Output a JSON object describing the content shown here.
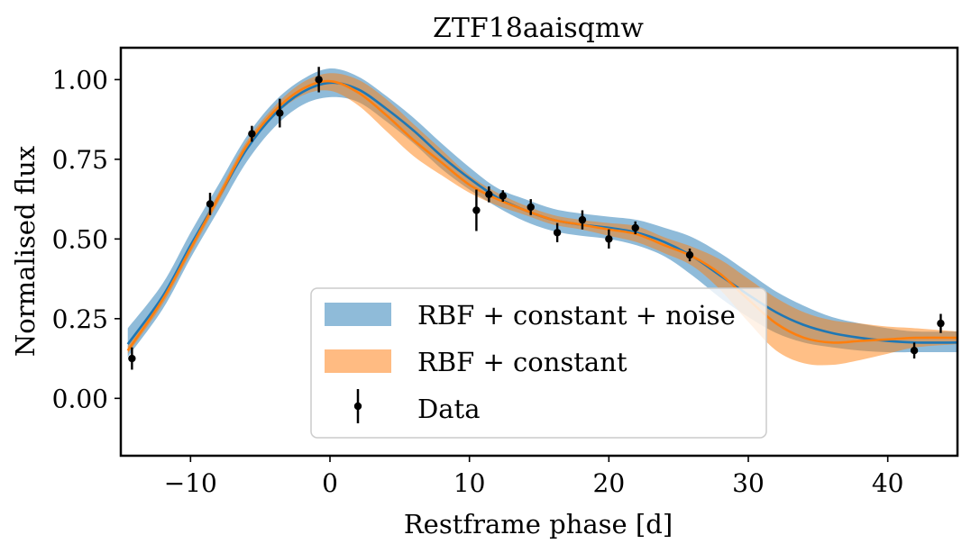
{
  "chart_data": {
    "type": "line",
    "title": "ZTF18aaisqmw",
    "xlabel": "Restframe phase [d]",
    "ylabel": "Normalised flux",
    "xlim": [
      -15,
      45
    ],
    "ylim": [
      -0.18,
      1.1
    ],
    "xticks": [
      -10,
      0,
      10,
      20,
      30,
      40
    ],
    "xtick_labels": [
      "−10",
      "0",
      "10",
      "20",
      "30",
      "40"
    ],
    "yticks": [
      0.0,
      0.25,
      0.5,
      0.75,
      1.0
    ],
    "ytick_labels": [
      "0.00",
      "0.25",
      "0.50",
      "0.75",
      "1.00"
    ],
    "grid": false,
    "legend_position": "lower-center",
    "colors": {
      "blue_line": "#1f77b4",
      "blue_band": "#8fbbd9",
      "orange_line": "#ff7f0e",
      "orange_band": "#ff7f0e",
      "data": "#000000"
    },
    "series": [
      {
        "name": "RBF + constant + noise",
        "kind": "band",
        "x": [
          -14.5,
          -12,
          -10,
          -8,
          -6,
          -4,
          -2,
          0,
          2,
          4,
          6,
          8,
          10,
          12,
          14,
          16,
          18,
          20,
          22,
          24,
          26,
          28,
          30,
          32,
          34,
          36,
          38,
          40,
          42,
          45
        ],
        "mean": [
          0.17,
          0.32,
          0.48,
          0.63,
          0.78,
          0.89,
          0.96,
          0.99,
          0.97,
          0.91,
          0.84,
          0.76,
          0.69,
          0.63,
          0.59,
          0.56,
          0.545,
          0.535,
          0.52,
          0.49,
          0.445,
          0.385,
          0.325,
          0.27,
          0.23,
          0.205,
          0.19,
          0.18,
          0.175,
          0.175
        ],
        "lower": [
          0.13,
          0.28,
          0.44,
          0.59,
          0.74,
          0.85,
          0.92,
          0.945,
          0.93,
          0.87,
          0.8,
          0.72,
          0.655,
          0.6,
          0.555,
          0.525,
          0.51,
          0.5,
          0.48,
          0.445,
          0.385,
          0.315,
          0.255,
          0.205,
          0.175,
          0.16,
          0.15,
          0.145,
          0.145,
          0.145
        ],
        "upper": [
          0.22,
          0.36,
          0.52,
          0.67,
          0.82,
          0.93,
          1.0,
          1.035,
          1.01,
          0.95,
          0.88,
          0.8,
          0.725,
          0.66,
          0.625,
          0.595,
          0.58,
          0.57,
          0.56,
          0.535,
          0.505,
          0.455,
          0.395,
          0.335,
          0.29,
          0.255,
          0.235,
          0.22,
          0.21,
          0.21
        ]
      },
      {
        "name": "RBF + constant",
        "kind": "band",
        "x": [
          -14.5,
          -12,
          -10,
          -8,
          -6,
          -4,
          -2,
          0,
          2,
          4,
          6,
          8,
          10,
          12,
          14,
          16,
          18,
          20,
          22,
          24,
          26,
          28,
          30,
          32,
          34,
          36,
          38,
          40,
          42,
          45
        ],
        "mean": [
          0.15,
          0.31,
          0.47,
          0.63,
          0.79,
          0.9,
          0.97,
          0.995,
          0.96,
          0.89,
          0.81,
          0.74,
          0.67,
          0.625,
          0.59,
          0.56,
          0.545,
          0.53,
          0.515,
          0.48,
          0.445,
          0.39,
          0.31,
          0.235,
          0.19,
          0.175,
          0.18,
          0.185,
          0.19,
          0.19
        ],
        "lower": [
          0.14,
          0.295,
          0.455,
          0.615,
          0.775,
          0.885,
          0.95,
          0.965,
          0.92,
          0.84,
          0.76,
          0.7,
          0.645,
          0.605,
          0.575,
          0.545,
          0.53,
          0.51,
          0.49,
          0.455,
          0.415,
          0.34,
          0.24,
          0.15,
          0.11,
          0.105,
          0.12,
          0.14,
          0.16,
          0.17
        ],
        "upper": [
          0.165,
          0.325,
          0.485,
          0.645,
          0.805,
          0.915,
          0.99,
          1.02,
          1.0,
          0.94,
          0.86,
          0.78,
          0.7,
          0.645,
          0.605,
          0.575,
          0.56,
          0.55,
          0.54,
          0.505,
          0.475,
          0.435,
          0.375,
          0.315,
          0.27,
          0.245,
          0.235,
          0.225,
          0.22,
          0.21
        ]
      },
      {
        "name": "Data",
        "kind": "errorbar",
        "points": [
          {
            "x": -14.2,
            "y": 0.125,
            "err": 0.035
          },
          {
            "x": -8.6,
            "y": 0.61,
            "err": 0.035
          },
          {
            "x": -5.6,
            "y": 0.83,
            "err": 0.025
          },
          {
            "x": -3.6,
            "y": 0.895,
            "err": 0.045
          },
          {
            "x": -0.8,
            "y": 1.0,
            "err": 0.04
          },
          {
            "x": 10.5,
            "y": 0.59,
            "err": 0.065
          },
          {
            "x": 11.4,
            "y": 0.64,
            "err": 0.025
          },
          {
            "x": 12.4,
            "y": 0.635,
            "err": 0.018
          },
          {
            "x": 14.4,
            "y": 0.6,
            "err": 0.025
          },
          {
            "x": 16.3,
            "y": 0.52,
            "err": 0.03
          },
          {
            "x": 18.1,
            "y": 0.56,
            "err": 0.03
          },
          {
            "x": 20.0,
            "y": 0.5,
            "err": 0.03
          },
          {
            "x": 21.9,
            "y": 0.535,
            "err": 0.02
          },
          {
            "x": 25.8,
            "y": 0.45,
            "err": 0.02
          },
          {
            "x": 41.9,
            "y": 0.15,
            "err": 0.025
          },
          {
            "x": 43.8,
            "y": 0.235,
            "err": 0.03
          }
        ]
      }
    ],
    "legend": [
      {
        "label": "RBF + constant + noise",
        "swatch": "blue-band"
      },
      {
        "label": "RBF + constant",
        "swatch": "orange-band"
      },
      {
        "label": "Data",
        "swatch": "errorbar"
      }
    ]
  }
}
